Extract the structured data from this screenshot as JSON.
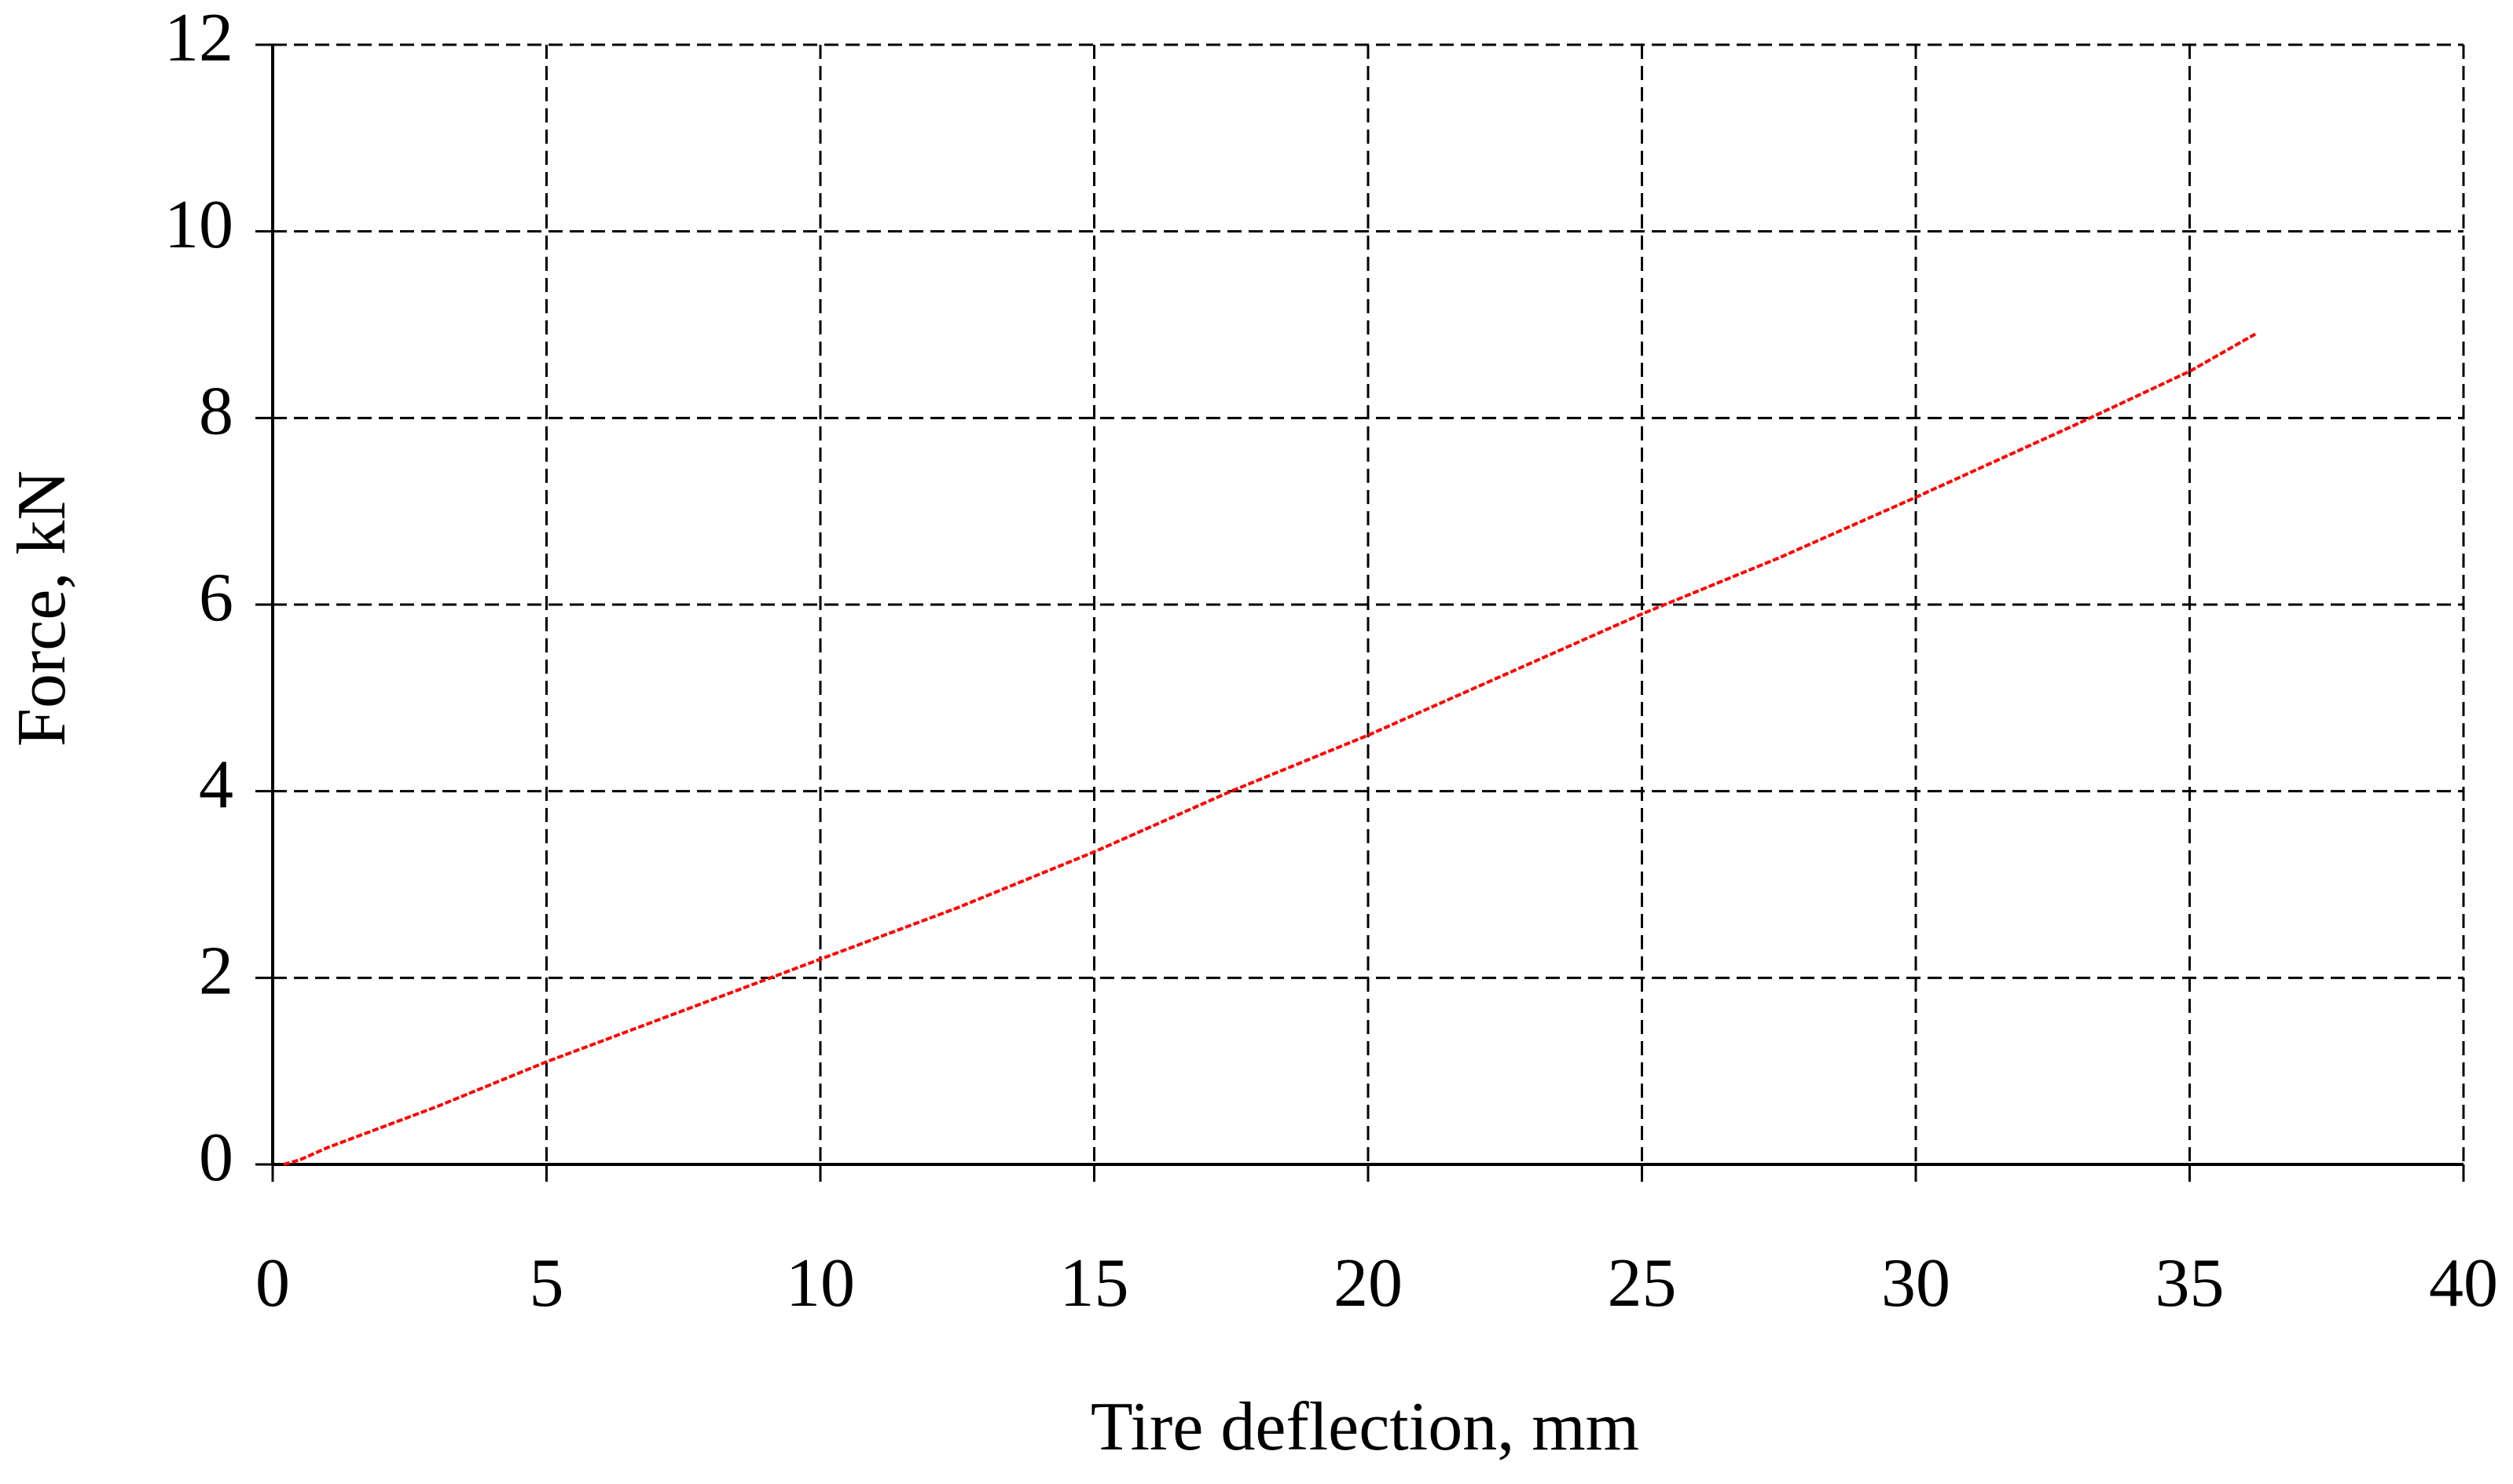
{
  "chart_data": {
    "type": "line",
    "x_label": "Tire deflection, mm",
    "y_label": "Force,  kN",
    "series": [
      {
        "name": "Force",
        "color": "#ff0000",
        "x": [
          0.2,
          0.5,
          1,
          2,
          3,
          5,
          7.5,
          10,
          12.5,
          15,
          17.5,
          20,
          22.5,
          25,
          27.5,
          30,
          33,
          35,
          36.2
        ],
        "values": [
          0,
          0.05,
          0.18,
          0.4,
          0.62,
          1.1,
          1.65,
          2.2,
          2.75,
          3.35,
          4.0,
          4.6,
          5.25,
          5.9,
          6.5,
          7.15,
          7.95,
          8.5,
          8.9
        ]
      }
    ],
    "xlim": [
      0,
      40
    ],
    "xticks": [
      0,
      5,
      10,
      15,
      20,
      25,
      30,
      35,
      40
    ],
    "ylim": [
      0,
      12
    ],
    "yticks": [
      0,
      2,
      4,
      6,
      8,
      10,
      12
    ],
    "grid": true
  }
}
